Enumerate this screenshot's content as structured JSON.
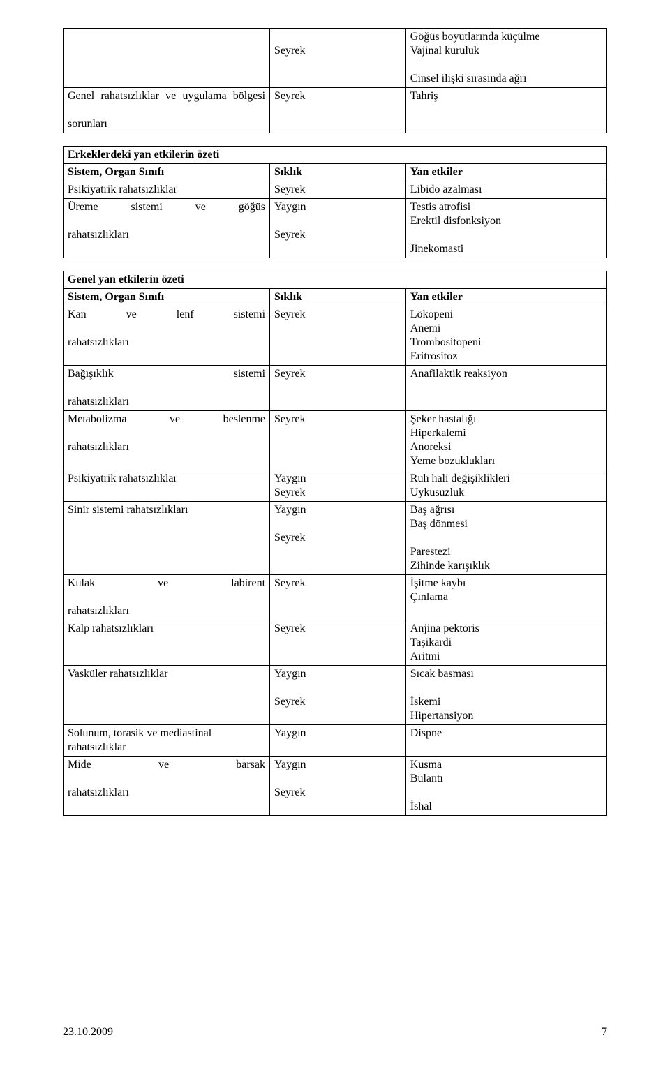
{
  "table1": {
    "rows": [
      {
        "c1": "",
        "c2": "\nSeyrek",
        "c3": "Göğüs boyutlarında küçülme\nVajinal kuruluk\n\nCinsel ilişki sırasında ağrı"
      },
      {
        "c1": "Genel rahatsızlıklar ve uygulama bölgesi sorunları",
        "c2": "Seyrek",
        "c3": "Tahriş",
        "justify": true
      }
    ]
  },
  "table2": {
    "header": {
      "title": "Erkeklerdeki yan etkilerin özeti",
      "col1": "Sistem, Organ Sınıfı",
      "col2": "Sıklık",
      "col3": "Yan etkiler"
    },
    "rows": [
      {
        "c1": "Psikiyatrik rahatsızlıklar",
        "c2": "Seyrek",
        "c3": "Libido azalması"
      },
      {
        "c1": "Üreme sistemi ve göğüs rahatsızlıkları",
        "c2": "Yaygın\n\nSeyrek",
        "c3": "Testis atrofisi\nErektil disfonksiyon\n\nJinekomasti",
        "justify": true
      }
    ]
  },
  "table3": {
    "header": {
      "title": "Genel yan etkilerin özeti",
      "col1": "Sistem, Organ Sınıfı",
      "col2": "Sıklık",
      "col3": "Yan etkiler"
    },
    "rows": [
      {
        "c1": "Kan ve lenf sistemi rahatsızlıkları",
        "c2": "Seyrek",
        "c3": "Lökopeni\nAnemi\nTrombositopeni\nEritrositoz",
        "justify": true
      },
      {
        "c1": "Bağışıklık sistemi rahatsızlıkları",
        "c2": "Seyrek",
        "c3": "Anafilaktik reaksiyon",
        "justify": true
      },
      {
        "c1": "Metabolizma ve beslenme rahatsızlıkları",
        "c2": "Seyrek",
        "c3": "Şeker hastalığı\nHiperkalemi\nAnoreksi\nYeme bozuklukları",
        "justify": true
      },
      {
        "c1": "Psikiyatrik rahatsızlıklar",
        "c2": "Yaygın\nSeyrek",
        "c3": "Ruh hali değişiklikleri\nUykusuzluk"
      },
      {
        "c1": "Sinir sistemi rahatsızlıkları",
        "c2": "Yaygın\n\nSeyrek",
        "c3": "Baş ağrısı\nBaş dönmesi\n\nParestezi\nZihinde karışıklık"
      },
      {
        "c1": "Kulak ve labirent rahatsızlıkları",
        "c2": "Seyrek",
        "c3": "İşitme kaybı\nÇınlama",
        "justify": true
      },
      {
        "c1": "Kalp rahatsızlıkları",
        "c2": "Seyrek",
        "c3": "Anjina pektoris\nTaşikardi\nAritmi"
      },
      {
        "c1": "Vasküler rahatsızlıklar",
        "c2": "Yaygın\n\nSeyrek",
        "c3": "Sıcak basması\n\nİskemi\nHipertansiyon"
      },
      {
        "c1": "Solunum, torasik ve mediastinal rahatsızlıklar",
        "c2": "Yaygın",
        "c3": "Dispne"
      },
      {
        "c1": "Mide ve barsak rahatsızlıkları",
        "c2": "Yaygın\n\nSeyrek",
        "c3": "Kusma\nBulantı\n\nİshal",
        "justify": true
      }
    ]
  },
  "footer": {
    "date": "23.10.2009",
    "page": "7"
  }
}
